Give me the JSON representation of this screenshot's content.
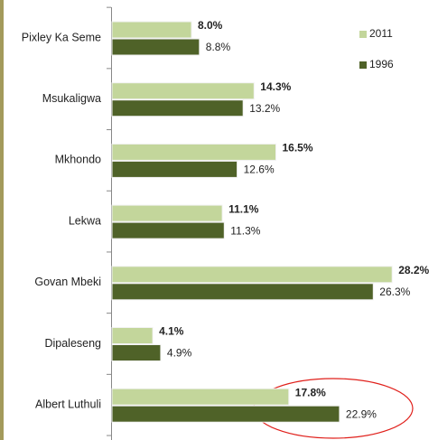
{
  "chart_data": {
    "type": "bar",
    "orientation": "horizontal",
    "categories": [
      "Pixley Ka Seme",
      "Msukaligwa",
      "Mkhondo",
      "Lekwa",
      "Govan Mbeki",
      "Dipaleseng",
      "Albert Luthuli"
    ],
    "series": [
      {
        "name": "2011",
        "color": "#c3d69b",
        "values": [
          8.0,
          14.3,
          16.5,
          11.1,
          28.2,
          4.1,
          17.8
        ],
        "value_labels": [
          "8.0%",
          "14.3%",
          "16.5%",
          "11.1%",
          "28.2%",
          "4.1%",
          "17.8%"
        ]
      },
      {
        "name": "1996",
        "color": "#4f6228",
        "values": [
          8.8,
          13.2,
          12.6,
          11.3,
          26.3,
          4.9,
          22.9
        ],
        "value_labels": [
          "8.8%",
          "13.2%",
          "12.6%",
          "11.3%",
          "26.3%",
          "4.9%",
          "22.9%"
        ]
      }
    ],
    "xlim": [
      0,
      32
    ],
    "legend": "upper right"
  }
}
